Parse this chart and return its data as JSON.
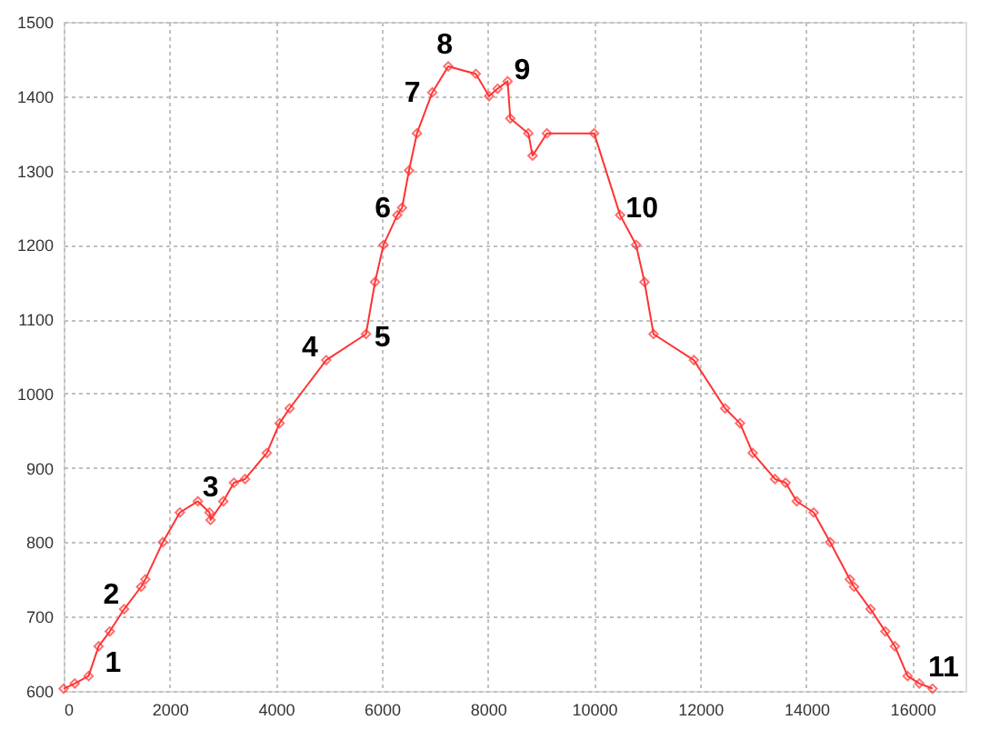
{
  "chart_data": {
    "type": "line",
    "x": [
      0,
      210,
      470,
      660,
      870,
      1140,
      1460,
      1540,
      1870,
      2190,
      2530,
      2750,
      2770,
      3010,
      3210,
      3420,
      3830,
      4070,
      4260,
      4950,
      5700,
      5870,
      6030,
      6290,
      6380,
      6510,
      6660,
      6950,
      7250,
      7770,
      8020,
      8180,
      8370,
      8420,
      8760,
      8840,
      9110,
      10000,
      10490,
      10790,
      10950,
      11120,
      11880,
      12470,
      12750,
      12990,
      13410,
      13610,
      13820,
      14140,
      14450,
      14820,
      14900,
      15210,
      15490,
      15670,
      15910,
      16130,
      16380
    ],
    "series": [
      {
        "color": "#ff3333",
        "values": [
          603,
          610,
          620,
          660,
          680,
          710,
          740,
          750,
          800,
          840,
          855,
          840,
          830,
          855,
          880,
          885,
          920,
          960,
          980,
          1045,
          1080,
          1150,
          1200,
          1240,
          1250,
          1300,
          1350,
          1405,
          1440,
          1430,
          1400,
          1410,
          1420,
          1370,
          1350,
          1320,
          1350,
          1350,
          1240,
          1200,
          1150,
          1080,
          1045,
          980,
          960,
          920,
          885,
          880,
          855,
          840,
          800,
          750,
          740,
          710,
          680,
          660,
          620,
          610,
          603
        ]
      }
    ],
    "xlim": [
      0,
      17000
    ],
    "ylim": [
      600,
      1500
    ],
    "xticks": [
      0,
      2000,
      4000,
      6000,
      8000,
      10000,
      12000,
      14000,
      16000
    ],
    "yticks": [
      600,
      700,
      800,
      900,
      1000,
      1100,
      1200,
      1300,
      1400,
      1500
    ],
    "grid": true,
    "marker": "diamond",
    "line_style": "solid",
    "annotations": [
      {
        "text": "1",
        "x": 660,
        "y": 660
      },
      {
        "text": "2",
        "x": 1140,
        "y": 710
      },
      {
        "text": "3",
        "x": 2770,
        "y": 830
      },
      {
        "text": "4",
        "x": 4950,
        "y": 1045
      },
      {
        "text": "5",
        "x": 5700,
        "y": 1080
      },
      {
        "text": "6",
        "x": 6290,
        "y": 1240
      },
      {
        "text": "7",
        "x": 6950,
        "y": 1405
      },
      {
        "text": "8",
        "x": 7250,
        "y": 1440
      },
      {
        "text": "9",
        "x": 8370,
        "y": 1420
      },
      {
        "text": "10",
        "x": 10490,
        "y": 1240
      },
      {
        "text": "11",
        "x": 16380,
        "y": 603
      }
    ]
  }
}
